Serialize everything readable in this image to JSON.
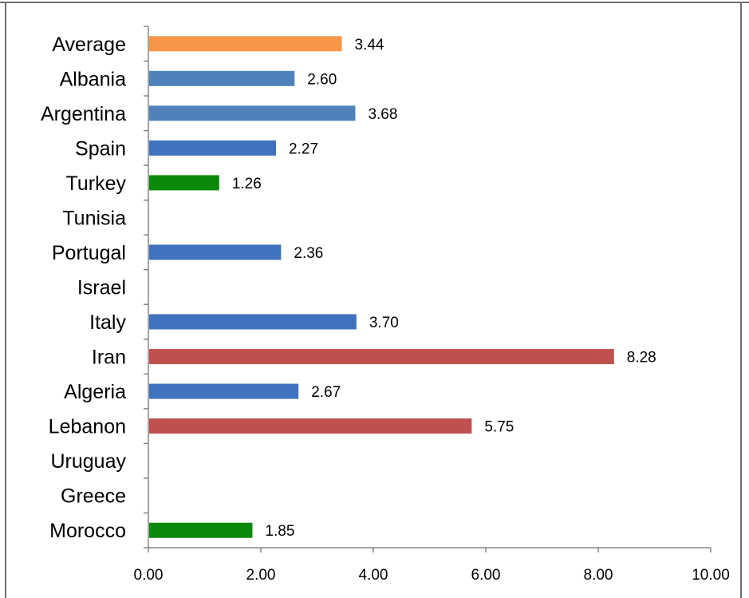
{
  "chart_data": {
    "type": "bar",
    "orientation": "horizontal",
    "title": "",
    "xlabel": "",
    "ylabel": "",
    "xlim": [
      0,
      10
    ],
    "grid": false,
    "legend": "none",
    "categories": [
      "Average",
      "Albania",
      "Argentina",
      "Spain",
      "Turkey",
      "Tunisia",
      "Portugal",
      "Israel",
      "Italy",
      "Iran",
      "Algeria",
      "Lebanon",
      "Uruguay",
      "Greece",
      "Morocco"
    ],
    "values": [
      3.44,
      2.6,
      3.68,
      2.27,
      1.26,
      null,
      2.36,
      null,
      3.7,
      8.28,
      2.67,
      5.75,
      null,
      null,
      1.85
    ],
    "value_labels": [
      "3.44",
      "2.60",
      "3.68",
      "2.27",
      "1.26",
      "",
      "2.36",
      "",
      "3.70",
      "8.28",
      "2.67",
      "5.75",
      "",
      "",
      "1.85"
    ],
    "bar_colors": [
      "#F79646",
      "#4F81BD",
      "#4F81BD",
      "#3F73C0",
      "#0A8A0A",
      "",
      "#3F73C0",
      "",
      "#3F73C0",
      "#C0504D",
      "#3F73C0",
      "#C0504D",
      "",
      "",
      "#0A8A0A"
    ],
    "x_ticks": [
      "0.00",
      "2.00",
      "4.00",
      "6.00",
      "8.00",
      "10.00"
    ]
  }
}
